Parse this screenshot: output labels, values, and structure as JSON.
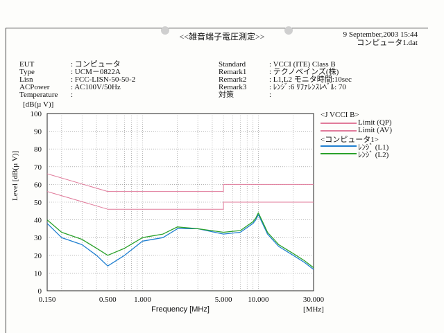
{
  "header": {
    "title": "<<雑音端子電圧測定>>",
    "date": "9 September,2003 15:44",
    "file": "コンピュータ1.dat"
  },
  "meta_left": [
    {
      "key": "EUT",
      "value": ": コンピュータ"
    },
    {
      "key": "Type",
      "value": ": UCM－0822A"
    },
    {
      "key": "Lisn",
      "value": ": FCC-LISN-50-50-2"
    },
    {
      "key": "ACPower",
      "value": ": AC100V/50Hz"
    },
    {
      "key": "Temperature",
      "value": ":"
    }
  ],
  "meta_right": [
    {
      "key": "Standard",
      "value": ": VCCI (ITE) Class B"
    },
    {
      "key": "Remark1",
      "value": ": テクノベインズ(株)"
    },
    {
      "key": "Remark2",
      "value": ": L1,L2   モニタ時間:10sec"
    },
    {
      "key": "Remark3",
      "value": ": ﾚﾝｼﾞ:6  ﾘﾌｧﾚﾝｽﾚﾍﾞﾙ: 70"
    },
    {
      "key": "対策",
      "value": ":"
    }
  ],
  "legend": {
    "group1": "<J VCCI B>",
    "limit_qp": "Limit (QP)",
    "limit_av": "Limit (AV)",
    "group2": "<コンピュータ1>",
    "l1": "ﾚﾝｼﾞ (L1)",
    "l2": "ﾚﾝｼﾞ (L2)"
  },
  "chart_data": {
    "type": "line",
    "title": "",
    "xlabel": "Frequency [MHz]",
    "xunit": "[MHz]",
    "ylabel": "Level [dB(µ V)]",
    "yunit": "[dB(µ V)]",
    "xscale": "log",
    "xlim": [
      0.15,
      30.0
    ],
    "ylim": [
      0,
      100
    ],
    "x_ticks": [
      "0.150",
      "0.500",
      "1.000",
      "5.000",
      "10.000",
      "30.000"
    ],
    "x_tick_values": [
      0.15,
      0.5,
      1.0,
      5.0,
      10.0,
      30.0
    ],
    "y_ticks": [
      0,
      10,
      20,
      30,
      40,
      50,
      60,
      70,
      80,
      90,
      100
    ],
    "grid": true,
    "legend_position": "right",
    "colors": {
      "limit": "#e07a9a",
      "l1": "#1f7fd0",
      "l2": "#2aa12a"
    },
    "series": [
      {
        "name": "Limit (QP)",
        "x": [
          0.15,
          0.5,
          0.5,
          5.0,
          5.0,
          30.0
        ],
        "y": [
          66,
          56,
          56,
          56,
          60,
          60
        ]
      },
      {
        "name": "Limit (AV)",
        "x": [
          0.15,
          0.5,
          0.5,
          5.0,
          5.0,
          30.0
        ],
        "y": [
          56,
          46,
          46,
          46,
          50,
          50
        ]
      },
      {
        "name": "ﾚﾝｼﾞ (L1)",
        "x": [
          0.15,
          0.2,
          0.3,
          0.4,
          0.5,
          0.7,
          1.0,
          1.5,
          2.0,
          3.0,
          5.0,
          7.0,
          9.0,
          9.5,
          10.0,
          12.0,
          15.0,
          20.0,
          25.0,
          30.0
        ],
        "y": [
          38,
          30,
          26,
          20,
          14,
          20,
          28,
          30,
          35,
          35,
          32,
          33,
          38,
          40,
          43,
          32,
          25,
          20,
          16,
          12
        ]
      },
      {
        "name": "ﾚﾝｼﾞ (L2)",
        "x": [
          0.15,
          0.2,
          0.3,
          0.4,
          0.5,
          0.7,
          1.0,
          1.5,
          2.0,
          3.0,
          5.0,
          7.0,
          9.0,
          9.5,
          10.0,
          12.0,
          15.0,
          20.0,
          25.0,
          30.0
        ],
        "y": [
          40,
          33,
          29,
          24,
          20,
          24,
          30,
          32,
          36,
          35,
          33,
          34,
          39,
          41,
          44,
          33,
          26,
          21,
          17,
          13
        ]
      }
    ]
  }
}
